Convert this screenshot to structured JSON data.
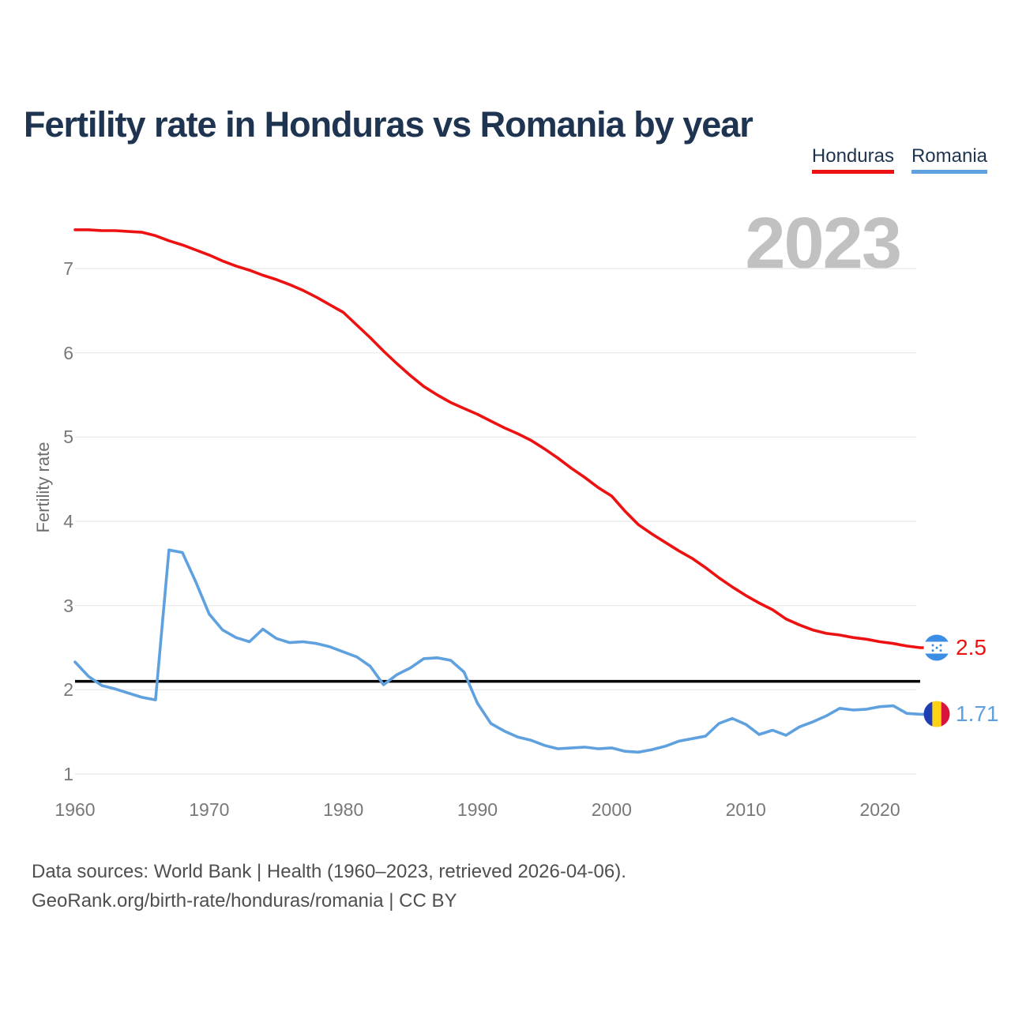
{
  "header": {
    "title": "Fertility rate in Honduras vs Romania by year",
    "legend": [
      {
        "label": "Honduras",
        "color": "#ee1111"
      },
      {
        "label": "Romania",
        "color": "#5fa0df"
      }
    ]
  },
  "watermark": "2023",
  "y_axis": {
    "label": "Fertility rate",
    "ticks": [
      1,
      2,
      3,
      4,
      5,
      6,
      7
    ]
  },
  "x_axis": {
    "ticks": [
      1960,
      1970,
      1980,
      1990,
      2000,
      2010,
      2020
    ]
  },
  "end_labels": [
    {
      "series": "Honduras",
      "value": "2.5",
      "color": "#ee1111",
      "flag": "honduras-flag"
    },
    {
      "series": "Romania",
      "value": "1.71",
      "color": "#5fa0df",
      "flag": "romania-flag"
    }
  ],
  "footer": {
    "line1": "Data sources: World Bank | Health (1960–2023, retrieved 2026-04-06).",
    "line2": "GeoRank.org/birth-rate/honduras/romania | CC BY"
  },
  "chart_data": {
    "type": "line",
    "title": "Fertility rate in Honduras vs Romania by year",
    "xlabel": "",
    "ylabel": "Fertility rate",
    "ylim": [
      0.8,
      7.6
    ],
    "grid": "horizontal",
    "legend_position": "top-right",
    "x": [
      1960,
      1961,
      1962,
      1963,
      1964,
      1965,
      1966,
      1967,
      1968,
      1969,
      1970,
      1971,
      1972,
      1973,
      1974,
      1975,
      1976,
      1977,
      1978,
      1979,
      1980,
      1981,
      1982,
      1983,
      1984,
      1985,
      1986,
      1987,
      1988,
      1989,
      1990,
      1991,
      1992,
      1993,
      1994,
      1995,
      1996,
      1997,
      1998,
      1999,
      2000,
      2001,
      2002,
      2003,
      2004,
      2005,
      2006,
      2007,
      2008,
      2009,
      2010,
      2011,
      2012,
      2013,
      2014,
      2015,
      2016,
      2017,
      2018,
      2019,
      2020,
      2021,
      2022,
      2023
    ],
    "series": [
      {
        "name": "Honduras",
        "color": "#ee1111",
        "values": [
          7.46,
          7.46,
          7.45,
          7.45,
          7.44,
          7.43,
          7.39,
          7.33,
          7.28,
          7.22,
          7.16,
          7.09,
          7.03,
          6.98,
          6.92,
          6.87,
          6.81,
          6.74,
          6.66,
          6.57,
          6.48,
          6.33,
          6.18,
          6.02,
          5.87,
          5.73,
          5.6,
          5.5,
          5.41,
          5.34,
          5.27,
          5.19,
          5.11,
          5.04,
          4.96,
          4.86,
          4.75,
          4.63,
          4.52,
          4.4,
          4.3,
          4.12,
          3.96,
          3.85,
          3.75,
          3.65,
          3.56,
          3.45,
          3.33,
          3.22,
          3.12,
          3.03,
          2.95,
          2.84,
          2.77,
          2.71,
          2.67,
          2.65,
          2.62,
          2.6,
          2.57,
          2.55,
          2.52,
          2.5
        ]
      },
      {
        "name": "Romania",
        "color": "#5fa0df",
        "values": [
          2.33,
          2.16,
          2.05,
          2.01,
          1.96,
          1.91,
          1.88,
          3.66,
          3.63,
          3.28,
          2.9,
          2.71,
          2.62,
          2.57,
          2.72,
          2.61,
          2.56,
          2.57,
          2.55,
          2.51,
          2.45,
          2.39,
          2.28,
          2.06,
          2.18,
          2.26,
          2.37,
          2.38,
          2.35,
          2.21,
          1.84,
          1.6,
          1.51,
          1.44,
          1.4,
          1.34,
          1.3,
          1.31,
          1.32,
          1.3,
          1.31,
          1.27,
          1.26,
          1.29,
          1.33,
          1.39,
          1.42,
          1.45,
          1.6,
          1.66,
          1.59,
          1.47,
          1.52,
          1.46,
          1.56,
          1.62,
          1.69,
          1.78,
          1.76,
          1.77,
          1.8,
          1.81,
          1.72,
          1.71
        ]
      }
    ],
    "reference_line": {
      "value": 2.1,
      "color": "#000000"
    },
    "end_values": {
      "Honduras": 2.5,
      "Romania": 1.71
    },
    "watermark_year": "2023"
  }
}
